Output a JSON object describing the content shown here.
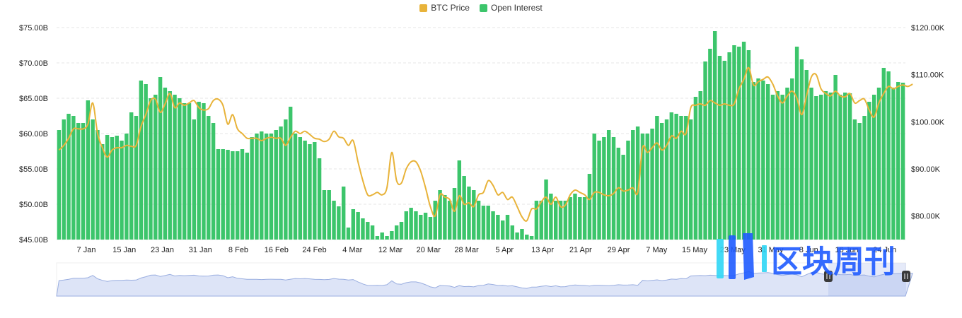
{
  "legend": {
    "btc_label": "BTC Price",
    "oi_label": "Open Interest"
  },
  "colors": {
    "btc": "#E8B33A",
    "oi": "#3CC56B",
    "navigator_fill": "#DDE4F7",
    "navigator_line": "#9AAEE0",
    "grid": "#E6E6E6"
  },
  "watermark": {
    "text": "区块周刊"
  },
  "chart_data": {
    "type": "bar",
    "title": "",
    "series": [
      {
        "name": "Open Interest",
        "type": "bar",
        "axis": "left",
        "values": [
          60.5,
          62.0,
          62.8,
          62.5,
          61.5,
          61.5,
          64.7,
          62.0,
          60.5,
          58.5,
          59.8,
          59.5,
          59.7,
          59.0,
          60.0,
          63.0,
          62.5,
          67.5,
          67.0,
          65.0,
          65.5,
          68.0,
          66.5,
          66.0,
          65.5,
          65.0,
          64.3,
          64.3,
          62.0,
          64.5,
          64.3,
          62.5,
          61.5,
          57.8,
          57.8,
          57.7,
          57.5,
          57.5,
          57.8,
          57.3,
          59.5,
          60.0,
          60.3,
          60.0,
          60.0,
          60.5,
          61.0,
          62.0,
          63.8,
          60.0,
          59.5,
          59.0,
          58.5,
          58.8,
          56.5,
          52.0,
          52.0,
          50.5,
          49.7,
          52.5,
          46.7,
          49.3,
          48.9,
          48.0,
          47.5,
          47.0,
          45.5,
          46.0,
          45.5,
          46.2,
          47.0,
          47.5,
          49.0,
          49.5,
          49.0,
          48.5,
          48.8,
          48.2,
          50.5,
          52.0,
          51.3,
          50.5,
          52.3,
          56.2,
          54.0,
          52.5,
          52.0,
          50.5,
          49.8,
          49.8,
          49.0,
          48.5,
          47.7,
          48.5,
          47.0,
          46.0,
          46.5,
          45.7,
          45.5,
          50.5,
          50.5,
          53.5,
          51.5,
          50.5,
          50.5,
          50.5,
          51.0,
          51.5,
          51.0,
          51.0,
          54.3,
          60.0,
          59.0,
          59.5,
          60.5,
          59.5,
          58.0,
          57.0,
          59.0,
          60.5,
          61.0,
          60.0,
          60.0,
          60.7,
          62.5,
          61.5,
          62.0,
          63.0,
          62.8,
          62.5,
          62.5,
          62.0,
          65.2,
          66.0,
          70.2,
          72.0,
          74.5,
          71.0,
          70.3,
          71.5,
          72.5,
          72.3,
          73.0,
          71.8,
          67.3,
          67.8,
          67.5,
          67.0,
          65.5,
          66.0,
          65.5,
          66.5,
          67.8,
          72.3,
          70.5,
          69.0,
          66.5,
          65.3,
          65.5,
          66.0,
          65.8,
          68.3,
          65.5,
          65.8,
          65.7,
          62.0,
          61.5,
          62.5,
          64.5,
          65.5,
          66.5,
          69.3,
          68.8,
          66.5,
          67.3,
          67.2
        ]
      },
      {
        "name": "BTC Price",
        "type": "line",
        "axis": "right",
        "values": [
          94.0,
          95.0,
          96.5,
          98.5,
          98.5,
          98.5,
          99.5,
          104.0,
          97.5,
          94.5,
          92.5,
          94.0,
          94.5,
          94.5,
          95.0,
          94.8,
          95.0,
          99.0,
          101.5,
          104.5,
          104.8,
          102.0,
          103.8,
          106.0,
          103.0,
          104.0,
          103.5,
          104.0,
          104.5,
          103.0,
          102.5,
          102.8,
          104.5,
          104.8,
          103.5,
          99.5,
          101.5,
          98.5,
          97.5,
          96.5,
          96.5,
          96.5,
          96.0,
          96.5,
          96.7,
          96.5,
          96.5,
          95.0,
          96.7,
          98.0,
          97.5,
          98.0,
          97.3,
          96.5,
          96.3,
          95.8,
          96.3,
          98.0,
          96.8,
          96.5,
          95.0,
          96.0,
          91.5,
          87.5,
          84.5,
          84.5,
          85.0,
          84.5,
          86.0,
          93.5,
          87.5,
          87.0,
          90.0,
          91.5,
          91.5,
          89.5,
          86.0,
          82.0,
          80.0,
          84.5,
          84.0,
          83.5,
          81.0,
          84.3,
          82.5,
          82.8,
          82.0,
          84.5,
          85.0,
          87.5,
          86.5,
          84.5,
          85.0,
          83.5,
          84.0,
          82.0,
          79.8,
          79.0,
          81.5,
          81.5,
          83.0,
          84.0,
          82.5,
          84.0,
          82.0,
          82.3,
          84.5,
          85.5,
          85.0,
          84.5,
          83.5,
          85.0,
          85.0,
          84.5,
          84.3,
          84.8,
          86.0,
          85.3,
          85.5,
          86.0,
          85.0,
          94.5,
          93.5,
          94.5,
          95.5,
          94.0,
          95.0,
          97.0,
          96.5,
          98.0,
          97.5,
          103.0,
          103.5,
          103.8,
          103.5,
          104.5,
          104.0,
          103.5,
          103.8,
          103.5,
          103.8,
          107.0,
          109.0,
          111.5,
          107.8,
          108.5,
          109.0,
          109.5,
          108.0,
          105.5,
          104.0,
          105.5,
          106.5,
          105.0,
          101.5,
          105.5,
          109.5,
          110.0,
          107.0,
          106.0,
          105.5,
          106.5,
          105.5,
          105.3,
          106.0,
          104.0,
          104.5,
          104.8,
          102.5,
          101.0,
          104.0,
          106.0,
          107.5,
          107.0,
          107.5,
          107.8,
          107.5,
          108.0
        ]
      }
    ],
    "x_tick_labels": [
      "7 Jan",
      "15 Jan",
      "23 Jan",
      "31 Jan",
      "8 Feb",
      "16 Feb",
      "24 Feb",
      "4 Mar",
      "12 Mar",
      "20 Mar",
      "28 Mar",
      "5 Apr",
      "13 Apr",
      "21 Apr",
      "29 Apr",
      "7 May",
      "15 May",
      "23 May",
      "31 May",
      "8 Jun",
      "16 Jun",
      "24 Jun"
    ],
    "y_left": {
      "min": 45,
      "max": 75,
      "ticks": [
        "$45.00B",
        "$50.00B",
        "$55.00B",
        "$60.00B",
        "$65.00B",
        "$70.00B",
        "$75.00B"
      ]
    },
    "y_right": {
      "min": 75,
      "max": 120,
      "ticks": [
        "$80.00K",
        "$90.00K",
        "$100.00K",
        "$110.00K",
        "$120.00K"
      ],
      "tick_values": [
        80,
        90,
        100,
        110,
        120
      ]
    },
    "grid": true,
    "legend_position": "top-center",
    "navigator": true
  }
}
